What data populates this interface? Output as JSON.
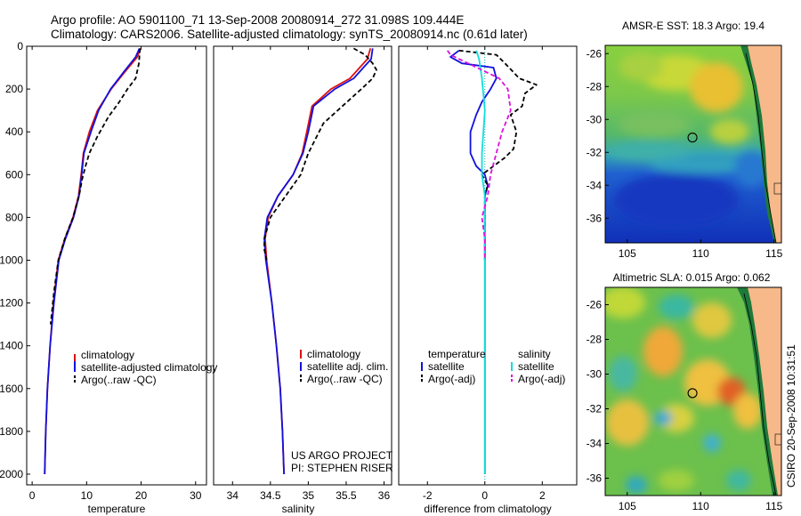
{
  "header": {
    "line1": "Argo profile: AO 5901100_71 13-Sep-2008 20080914_272 31.098S 109.444E",
    "line2": "Climatology: CARS2006. Satellite-adjusted climatology: synTS_20080914.nc (0.61d later)"
  },
  "credit": {
    "line1": "US ARGO PROJECT",
    "line2": "PI: STEPHEN RISER"
  },
  "stamp": "CSIRO 20-Sep-2008 10:31:51",
  "colors": {
    "climatology": "#dd1111",
    "satellite": "#1111dd",
    "argo": "#000000",
    "salinity_satellite": "#11dddd",
    "salinity_argo": "#dd11dd",
    "land": "#f7b98a",
    "zero_line": "#00aaaa"
  },
  "chart_data": [
    {
      "type": "line",
      "id": "temperature",
      "xlabel": "temperature",
      "ylabel": "",
      "xlim": [
        -1,
        32
      ],
      "ylim": [
        0,
        2050
      ],
      "y_reversed": true,
      "xticks": [
        "0",
        "10",
        "20",
        "30"
      ],
      "xtick_values": [
        0,
        10,
        20,
        30
      ],
      "yticks": [
        "0",
        "200",
        "400",
        "600",
        "800",
        "1000",
        "1200",
        "1400",
        "1600",
        "1800",
        "2000"
      ],
      "ytick_values": [
        0,
        200,
        400,
        600,
        800,
        1000,
        1200,
        1400,
        1600,
        1800,
        2000
      ],
      "legend": [
        "climatology",
        "satellite-adjusted climatology",
        "Argo(..raw -QC)"
      ],
      "series": [
        {
          "name": "climatology",
          "style": "solid",
          "color": "#dd1111",
          "x": [
            19.9,
            19.3,
            17.0,
            14.5,
            12.0,
            10.5,
            9.4,
            9.0,
            8.5,
            7.5,
            6.0,
            4.8,
            3.9,
            3.3,
            2.8,
            2.5,
            2.3
          ],
          "y": [
            10,
            50,
            120,
            200,
            300,
            400,
            500,
            600,
            700,
            800,
            900,
            1000,
            1200,
            1400,
            1600,
            1800,
            2000
          ]
        },
        {
          "name": "satellite-adjusted climatology",
          "style": "solid",
          "color": "#1111dd",
          "x": [
            19.7,
            19.0,
            16.8,
            14.4,
            12.2,
            10.8,
            9.5,
            9.1,
            8.6,
            7.6,
            6.1,
            4.9,
            4.0,
            3.3,
            2.8,
            2.5,
            2.3
          ],
          "y": [
            10,
            50,
            120,
            200,
            300,
            400,
            500,
            600,
            700,
            800,
            900,
            1000,
            1200,
            1400,
            1600,
            1800,
            2000
          ]
        },
        {
          "name": "Argo(..raw -QC)",
          "style": "dashed",
          "color": "#000000",
          "x": [
            19.8,
            19.6,
            19.0,
            17.5,
            16.0,
            14.0,
            12.0,
            10.5,
            9.8,
            9.2,
            8.6,
            7.5,
            6.0,
            4.8,
            4.0,
            3.4
          ],
          "y": [
            10,
            80,
            150,
            200,
            260,
            330,
            420,
            500,
            560,
            620,
            700,
            800,
            900,
            1000,
            1150,
            1300
          ]
        }
      ]
    },
    {
      "type": "line",
      "id": "salinity",
      "xlabel": "salinity",
      "xlim": [
        33.75,
        36.1
      ],
      "ylim": [
        0,
        2050
      ],
      "y_reversed": true,
      "xticks": [
        "34",
        "34.5",
        "35",
        "35.5",
        "36"
      ],
      "xtick_values": [
        34,
        34.5,
        35,
        35.5,
        36
      ],
      "legend": [
        "climatology",
        "satellite adj. clim.",
        "Argo(..raw -QC)"
      ],
      "series": [
        {
          "name": "climatology",
          "style": "solid",
          "color": "#dd1111",
          "x": [
            35.82,
            35.78,
            35.55,
            35.3,
            35.05,
            34.98,
            34.92,
            34.8,
            34.6,
            34.47,
            34.43,
            34.45,
            34.52,
            34.58,
            34.63,
            34.66,
            34.68
          ],
          "y": [
            10,
            60,
            150,
            200,
            280,
            400,
            500,
            600,
            700,
            800,
            900,
            1000,
            1200,
            1400,
            1600,
            1800,
            2000
          ]
        },
        {
          "name": "satellite adj. clim.",
          "style": "solid",
          "color": "#1111dd",
          "x": [
            35.85,
            35.83,
            35.6,
            35.35,
            35.07,
            35.0,
            34.93,
            34.8,
            34.6,
            34.46,
            34.42,
            34.44,
            34.52,
            34.58,
            34.63,
            34.66,
            34.68
          ],
          "y": [
            10,
            60,
            150,
            200,
            280,
            400,
            500,
            600,
            700,
            800,
            900,
            1000,
            1200,
            1400,
            1600,
            1800,
            2000
          ]
        },
        {
          "name": "Argo(..raw -QC)",
          "style": "dashed",
          "color": "#000000",
          "x": [
            35.6,
            35.75,
            35.85,
            35.9,
            35.85,
            35.7,
            35.45,
            35.2,
            35.1,
            35.0,
            34.9,
            34.7,
            34.5,
            34.42,
            34.42,
            34.45
          ],
          "y": [
            10,
            40,
            80,
            110,
            150,
            200,
            280,
            360,
            430,
            500,
            600,
            700,
            800,
            900,
            950,
            1000
          ]
        }
      ]
    },
    {
      "type": "line",
      "id": "difference",
      "xlabel": "difference from climatology",
      "xlim": [
        -3,
        3.2
      ],
      "ylim": [
        0,
        2050
      ],
      "y_reversed": true,
      "xticks": [
        "-2",
        "0",
        "2"
      ],
      "xtick_values": [
        -2,
        0,
        2
      ],
      "legend_headers": [
        "temperature",
        "salinity"
      ],
      "legend": [
        "satellite",
        "Argo(-adj)",
        "satellite",
        "Argo(-adj)"
      ],
      "series": [
        {
          "name": "temperature satellite",
          "style": "solid",
          "color": "#1111dd",
          "x": [
            -0.9,
            -1.2,
            -0.8,
            0.3,
            0.4,
            0.2,
            -0.1,
            -0.3,
            -0.5,
            -0.5,
            -0.3,
            0.0,
            0.1,
            0.0,
            0.0,
            0.0,
            0.0,
            0.0
          ],
          "y": [
            20,
            50,
            80,
            100,
            150,
            200,
            260,
            320,
            400,
            500,
            560,
            600,
            650,
            700,
            800,
            1000,
            1500,
            2000
          ]
        },
        {
          "name": "temperature Argo(-adj)",
          "style": "dashed",
          "color": "#000000",
          "x": [
            -0.9,
            0.4,
            0.7,
            1.2,
            1.8,
            1.4,
            1.3,
            0.9,
            1.1,
            1.0,
            0.7,
            0.3,
            -0.1,
            0.1,
            0.0,
            0.0
          ],
          "y": [
            20,
            40,
            80,
            150,
            180,
            220,
            280,
            320,
            400,
            480,
            520,
            560,
            600,
            650,
            700,
            1000
          ]
        },
        {
          "name": "salinity satellite",
          "style": "solid",
          "color": "#11dddd",
          "x": [
            -0.3,
            -0.2,
            -0.1,
            0.0,
            -0.1,
            -0.1,
            0.0,
            0.0,
            0.0,
            0.0
          ],
          "y": [
            20,
            60,
            150,
            300,
            500,
            600,
            700,
            1000,
            1500,
            2000
          ]
        },
        {
          "name": "salinity Argo(-adj)",
          "style": "dashed",
          "color": "#dd11dd",
          "x": [
            -1.3,
            -1.2,
            0.5,
            0.8,
            0.9,
            0.6,
            0.4,
            0.2,
            0.1,
            -0.1,
            0.0,
            0.0
          ],
          "y": [
            20,
            40,
            150,
            200,
            300,
            400,
            500,
            600,
            700,
            800,
            900,
            1000
          ]
        }
      ]
    },
    {
      "type": "heatmap",
      "id": "sst-map",
      "title": "AMSR-E SST: 18.3 Argo: 19.4",
      "xlim": [
        103.5,
        115.5
      ],
      "ylim": [
        -37.5,
        -25.5
      ],
      "xticks": [
        "105",
        "110",
        "115"
      ],
      "xtick_values": [
        105,
        110,
        115
      ],
      "yticks": [
        "-26",
        "-28",
        "-30",
        "-32",
        "-34",
        "-36"
      ],
      "ytick_values": [
        -26,
        -28,
        -30,
        -32,
        -34,
        -36
      ],
      "marker": {
        "lon": 109.444,
        "lat": -31.098
      }
    },
    {
      "type": "heatmap",
      "id": "sla-map",
      "title": "Altimetric SLA: 0.015 Argo: 0.062",
      "xlim": [
        103.5,
        115.5
      ],
      "ylim": [
        -37.0,
        -25.0
      ],
      "xticks": [
        "105",
        "110",
        "115"
      ],
      "xtick_values": [
        105,
        110,
        115
      ],
      "yticks": [
        "-26",
        "-28",
        "-30",
        "-32",
        "-34",
        "-36"
      ],
      "ytick_values": [
        -26,
        -28,
        -30,
        -32,
        -34,
        -36
      ],
      "marker": {
        "lon": 109.444,
        "lat": -31.098
      }
    }
  ]
}
